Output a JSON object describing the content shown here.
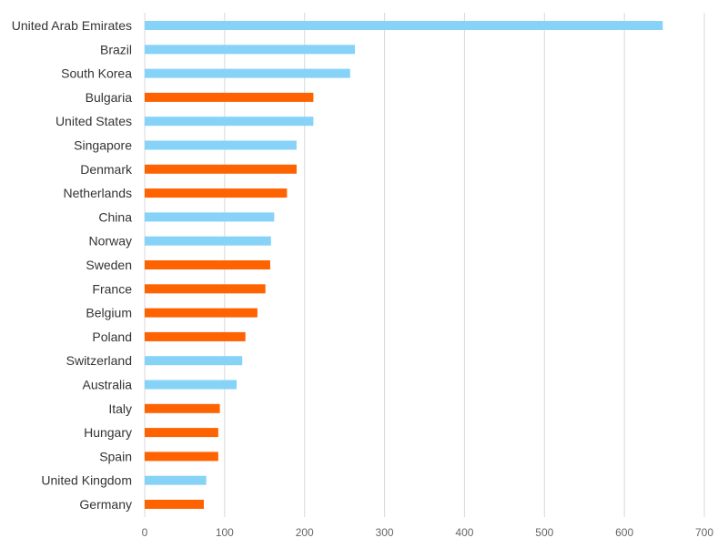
{
  "chart_data": {
    "type": "bar",
    "orientation": "horizontal",
    "categories": [
      "United Arab Emirates",
      "Brazil",
      "South Korea",
      "Bulgaria",
      "United States",
      "Singapore",
      "Denmark",
      "Netherlands",
      "China",
      "Norway",
      "Sweden",
      "France",
      "Belgium",
      "Poland",
      "Switzerland",
      "Australia",
      "Italy",
      "Hungary",
      "Spain",
      "United Kingdom",
      "Germany"
    ],
    "values": [
      648,
      263,
      257,
      211,
      211,
      190,
      190,
      178,
      162,
      158,
      157,
      151,
      141,
      126,
      122,
      115,
      94,
      92,
      92,
      77,
      74
    ],
    "bar_colors": [
      "#87d3f8",
      "#87d3f8",
      "#87d3f8",
      "#ff6200",
      "#87d3f8",
      "#87d3f8",
      "#ff6200",
      "#ff6200",
      "#87d3f8",
      "#87d3f8",
      "#ff6200",
      "#ff6200",
      "#ff6200",
      "#ff6200",
      "#87d3f8",
      "#87d3f8",
      "#ff6200",
      "#ff6200",
      "#ff6200",
      "#87d3f8",
      "#ff6200"
    ],
    "xlim": [
      0,
      700
    ],
    "x_ticks": [
      "0",
      "100",
      "200",
      "300",
      "400",
      "500",
      "600",
      "700"
    ],
    "grid": true,
    "title": "",
    "xlabel": "",
    "ylabel": ""
  }
}
